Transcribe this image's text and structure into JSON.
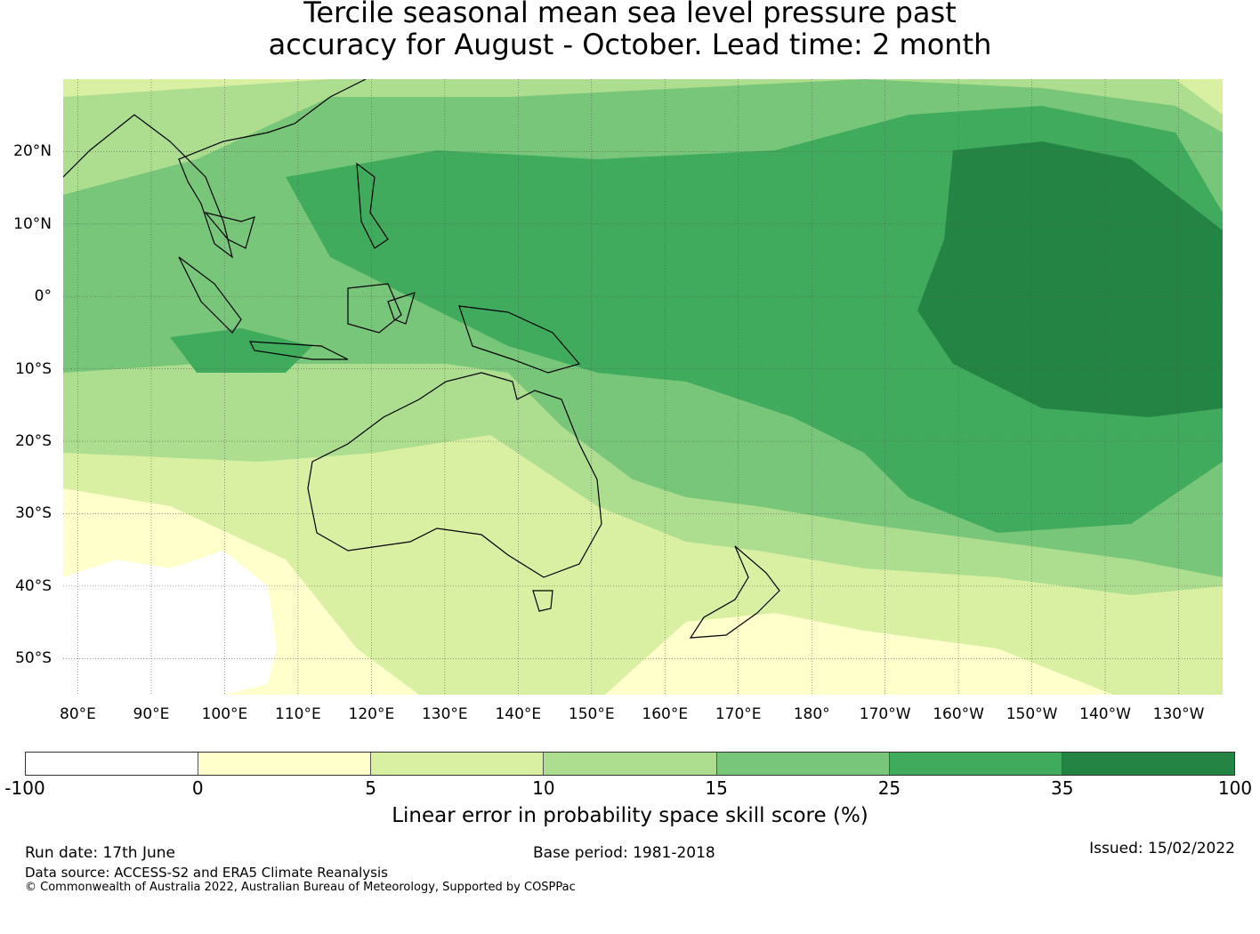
{
  "title": {
    "line1": "Tercile seasonal mean sea level pressure past",
    "line2": "accuracy for August - October. Lead time: 2 month"
  },
  "map": {
    "lat_labels": [
      "20°N",
      "10°N",
      "0°",
      "10°S",
      "20°S",
      "30°S",
      "40°S",
      "50°S"
    ],
    "lon_labels": [
      "80°E",
      "90°E",
      "100°E",
      "110°E",
      "120°E",
      "130°E",
      "140°E",
      "150°E",
      "160°E",
      "170°E",
      "180°",
      "170°W",
      "160°W",
      "150°W",
      "140°W",
      "130°W"
    ],
    "lon_extent": [
      78,
      236
    ],
    "lat_extent": [
      -55,
      30
    ],
    "grid": "dotted graticule every 10°",
    "regions": [
      "Southeast Asia",
      "Australia",
      "New Zealand",
      "Papua New Guinea",
      "Pacific Islands"
    ]
  },
  "legend": {
    "ticks": [
      "-100",
      "0",
      "5",
      "10",
      "15",
      "25",
      "35",
      "100"
    ],
    "colors": [
      "#ffffff",
      "#ffffcc",
      "#d9f0a3",
      "#addd8e",
      "#78c679",
      "#41ab5d",
      "#238443"
    ],
    "label": "Linear error in probability space skill score (%)"
  },
  "footer": {
    "run_date": "Run date: 17th June",
    "base_period": "Base period: 1981-2018",
    "issued": "Issued: 15/02/2022",
    "data_source": "Data source: ACCESS-S2 and ERA5 Climate Reanalysis",
    "copyright": "© Commonwealth of Australia 2022, Australian Bureau of Meteorology, Supported by COSPPac"
  }
}
